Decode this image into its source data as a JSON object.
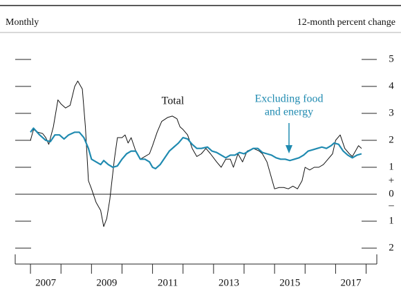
{
  "chart_data": {
    "type": "line",
    "subtitle_left": "Monthly",
    "subtitle_right": "12-month percent change",
    "annotations": [
      "Total",
      "Excluding food",
      "and energy"
    ],
    "y_sign_labels": [
      "+",
      "–"
    ],
    "xlim": [
      2006.5,
      2018.35
    ],
    "xticks": [
      2007,
      2008,
      2009,
      2010,
      2011,
      2012,
      2013,
      2014,
      2015,
      2016,
      2017,
      2018
    ],
    "xlabels": [
      {
        "value": 2007.5,
        "label": "2007"
      },
      {
        "value": 2009.5,
        "label": "2009"
      },
      {
        "value": 2011.5,
        "label": "2011"
      },
      {
        "value": 2013.5,
        "label": "2013"
      },
      {
        "value": 2015.5,
        "label": "2015"
      },
      {
        "value": 2017.5,
        "label": "2017"
      }
    ],
    "ylim": [
      -2.5,
      5.5
    ],
    "yticks": [
      {
        "value": -2,
        "label": "2"
      },
      {
        "value": -1,
        "label": "1"
      },
      0,
      1,
      2,
      3,
      4,
      5
    ],
    "series": [
      {
        "name": "Total",
        "color": "#111111",
        "x": [
          2007.0,
          2007.1,
          2007.25,
          2007.4,
          2007.5,
          2007.6,
          2007.75,
          2007.9,
          2008.0,
          2008.15,
          2008.3,
          2008.45,
          2008.55,
          2008.7,
          2008.8,
          2008.9,
          2009.0,
          2009.15,
          2009.3,
          2009.4,
          2009.5,
          2009.6,
          2009.75,
          2009.85,
          2010.0,
          2010.1,
          2010.2,
          2010.3,
          2010.45,
          2010.6,
          2010.75,
          2010.9,
          2011.0,
          2011.15,
          2011.3,
          2011.5,
          2011.65,
          2011.8,
          2011.9,
          2012.0,
          2012.15,
          2012.3,
          2012.45,
          2012.6,
          2012.75,
          2012.9,
          2013.1,
          2013.25,
          2013.4,
          2013.55,
          2013.65,
          2013.8,
          2013.95,
          2014.1,
          2014.3,
          2014.5,
          2014.6,
          2014.75,
          2014.85,
          2015.0,
          2015.15,
          2015.3,
          2015.45,
          2015.6,
          2015.75,
          2015.9,
          2016.0,
          2016.15,
          2016.3,
          2016.45,
          2016.6,
          2016.75,
          2016.9,
          2017.0,
          2017.15,
          2017.3,
          2017.45,
          2017.55,
          2017.65,
          2017.75,
          2017.85
        ],
        "values": [
          2.0,
          2.4,
          2.3,
          2.25,
          2.1,
          1.85,
          2.5,
          3.5,
          3.35,
          3.2,
          3.3,
          4.0,
          4.2,
          3.9,
          2.5,
          0.5,
          0.2,
          -0.3,
          -0.6,
          -1.2,
          -0.9,
          -0.2,
          1.3,
          2.1,
          2.1,
          2.2,
          1.9,
          2.1,
          1.6,
          1.3,
          1.4,
          1.5,
          1.8,
          2.3,
          2.7,
          2.85,
          2.9,
          2.8,
          2.5,
          2.4,
          2.2,
          1.7,
          1.4,
          1.5,
          1.7,
          1.5,
          1.2,
          1.0,
          1.3,
          1.3,
          1.0,
          1.5,
          1.2,
          1.6,
          1.7,
          1.6,
          1.5,
          1.2,
          0.8,
          0.2,
          0.25,
          0.25,
          0.2,
          0.3,
          0.2,
          0.5,
          1.0,
          0.9,
          1.0,
          1.0,
          1.1,
          1.3,
          1.5,
          2.0,
          2.2,
          1.7,
          1.5,
          1.4,
          1.6,
          1.8,
          1.7
        ]
      },
      {
        "name": "Excluding food and energy",
        "color": "#1f8ab0",
        "x": [
          2007.0,
          2007.1,
          2007.3,
          2007.5,
          2007.65,
          2007.8,
          2007.95,
          2008.1,
          2008.25,
          2008.45,
          2008.6,
          2008.75,
          2008.9,
          2009.0,
          2009.15,
          2009.3,
          2009.4,
          2009.55,
          2009.7,
          2009.85,
          2010.0,
          2010.15,
          2010.3,
          2010.45,
          2010.6,
          2010.75,
          2010.9,
          2011.0,
          2011.1,
          2011.25,
          2011.4,
          2011.55,
          2011.7,
          2011.85,
          2012.0,
          2012.15,
          2012.3,
          2012.45,
          2012.6,
          2012.8,
          2012.95,
          2013.1,
          2013.25,
          2013.4,
          2013.55,
          2013.7,
          2013.85,
          2014.0,
          2014.15,
          2014.3,
          2014.45,
          2014.6,
          2014.75,
          2014.9,
          2015.05,
          2015.2,
          2015.35,
          2015.5,
          2015.65,
          2015.8,
          2015.95,
          2016.1,
          2016.25,
          2016.4,
          2016.55,
          2016.7,
          2016.85,
          2016.95,
          2017.1,
          2017.25,
          2017.4,
          2017.55,
          2017.7,
          2017.85
        ],
        "values": [
          2.3,
          2.45,
          2.2,
          2.0,
          1.95,
          2.2,
          2.2,
          2.05,
          2.2,
          2.3,
          2.3,
          2.1,
          1.7,
          1.3,
          1.2,
          1.1,
          1.25,
          1.1,
          1.0,
          1.05,
          1.3,
          1.5,
          1.6,
          1.6,
          1.3,
          1.3,
          1.2,
          1.0,
          0.95,
          1.1,
          1.35,
          1.6,
          1.75,
          1.9,
          2.1,
          2.05,
          1.85,
          1.7,
          1.7,
          1.75,
          1.6,
          1.55,
          1.45,
          1.35,
          1.45,
          1.45,
          1.55,
          1.5,
          1.6,
          1.7,
          1.7,
          1.55,
          1.5,
          1.45,
          1.35,
          1.3,
          1.3,
          1.25,
          1.3,
          1.35,
          1.45,
          1.6,
          1.65,
          1.7,
          1.75,
          1.7,
          1.8,
          1.9,
          1.85,
          1.6,
          1.45,
          1.35,
          1.45,
          1.5
        ]
      }
    ]
  }
}
